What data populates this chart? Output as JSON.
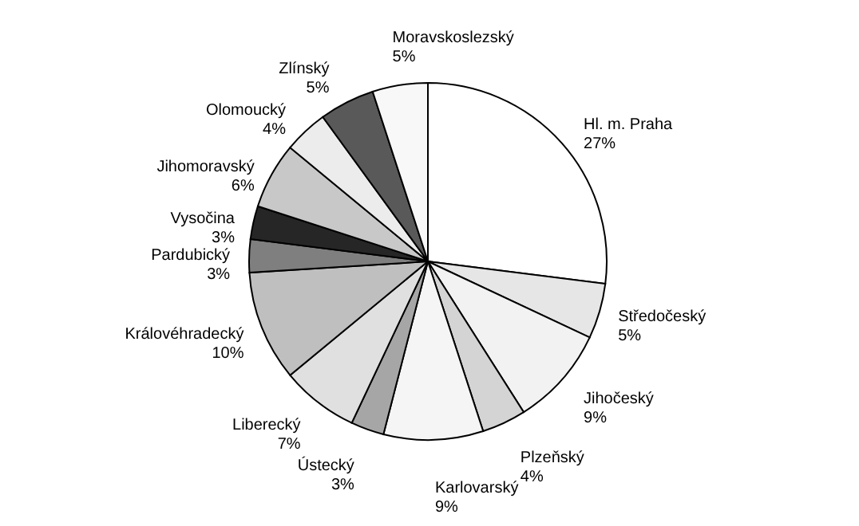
{
  "chart_data": {
    "type": "pie",
    "categories": [
      "Hl. m. Praha",
      "Středočeský",
      "Jihočeský",
      "Plzeňský",
      "Karlovarský",
      "Ústecký",
      "Liberecký",
      "Královéhradecký",
      "Pardubický",
      "Vysočina",
      "Jihomoravský",
      "Olomoucký",
      "Zlínský",
      "Moravskoslezský"
    ],
    "values": [
      27,
      5,
      9,
      4,
      9,
      3,
      7,
      10,
      3,
      3,
      6,
      4,
      5,
      5
    ],
    "value_labels": [
      "27%",
      "5%",
      "9%",
      "4%",
      "9%",
      "3%",
      "7%",
      "10%",
      "3%",
      "3%",
      "6%",
      "4%",
      "5%",
      "5%"
    ],
    "colors": [
      "#ffffff",
      "#e6e6e6",
      "#f2f2f2",
      "#d4d4d4",
      "#f5f5f5",
      "#a6a6a6",
      "#e0e0e0",
      "#bfbfbf",
      "#7f7f7f",
      "#262626",
      "#c8c8c8",
      "#ececec",
      "#595959",
      "#f8f8f8"
    ]
  }
}
